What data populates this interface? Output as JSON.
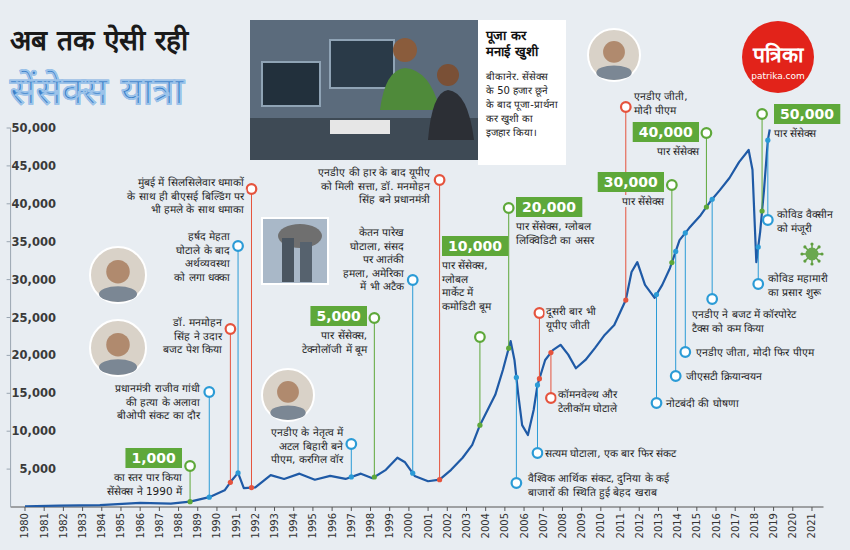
{
  "chart_data": {
    "type": "line",
    "title": "अब तक ऐसी रही",
    "subtitle": "सेंसेक्स यात्रा",
    "x": [
      1980.0,
      1981.8,
      1983.9,
      1986.0,
      1987.6,
      1988.6,
      1989.6,
      1990.4,
      1990.8,
      1991.1,
      1991.4,
      1992.0,
      1992.8,
      1993.5,
      1994.3,
      1995.1,
      1995.9,
      1996.7,
      1997.5,
      1998.1,
      1998.8,
      1999.4,
      1999.8,
      2000.3,
      2001.0,
      2001.6,
      2002.2,
      2002.8,
      2003.3,
      2003.7,
      2004.1,
      2004.5,
      2004.9,
      2005.3,
      2005.5,
      2005.7,
      2005.9,
      2006.2,
      2006.5,
      2006.7,
      2007.1,
      2007.5,
      2007.9,
      2008.3,
      2008.7,
      2009.2,
      2009.7,
      2010.2,
      2010.7,
      2011.3,
      2011.6,
      2011.9,
      2012.3,
      2012.8,
      2013.2,
      2013.6,
      2014.1,
      2014.6,
      2015.2,
      2015.7,
      2016.2,
      2016.7,
      2017.2,
      2017.7,
      2017.9,
      2018.1,
      2018.3,
      2018.5,
      2018.7,
      2018.8
    ],
    "values": [
      100,
      180,
      250,
      550,
      450,
      700,
      1300,
      2200,
      3600,
      4500,
      2500,
      2600,
      4200,
      3700,
      4400,
      3600,
      4100,
      3700,
      4400,
      3800,
      4900,
      6500,
      5900,
      4100,
      3400,
      3600,
      4900,
      6500,
      8200,
      10800,
      12800,
      14800,
      18100,
      21900,
      19400,
      14800,
      10800,
      9500,
      12800,
      16100,
      19400,
      20700,
      21400,
      20100,
      18300,
      19400,
      21000,
      22700,
      24000,
      27300,
      31000,
      32300,
      29300,
      27600,
      29300,
      31500,
      35200,
      36800,
      38500,
      40300,
      41800,
      43400,
      45500,
      47100,
      44500,
      32300,
      36300,
      41800,
      48400,
      49800
    ],
    "color": "#1f5aa6",
    "xlim": [
      1979.25,
      2021.6
    ],
    "ylim": [
      0,
      50000
    ],
    "xticks": [
      1980,
      1981,
      1982,
      1983,
      1984,
      1985,
      1986,
      1987,
      1988,
      1989,
      1990,
      1991,
      1992,
      1993,
      1994,
      1995,
      1996,
      1997,
      1998,
      1999,
      2000,
      2001,
      2002,
      2003,
      2004,
      2005,
      2006,
      2007,
      2008,
      2009,
      2010,
      2011,
      2012,
      2013,
      2014,
      2015,
      2016,
      2017,
      2018,
      2019,
      2020,
      2021
    ],
    "yticks": [
      {
        "value": 5000,
        "label": "5,000"
      },
      {
        "value": 10000,
        "label": "10,000"
      },
      {
        "value": 15000,
        "label": "15,000"
      },
      {
        "value": 20000,
        "label": "20,000"
      },
      {
        "value": 25000,
        "label": "25,000"
      },
      {
        "value": 30000,
        "label": "30,000"
      },
      {
        "value": 35000,
        "label": "35,000"
      },
      {
        "value": 40000,
        "label": "40,000"
      },
      {
        "value": 45000,
        "label": "45,000"
      },
      {
        "value": 50000,
        "label": "50,000"
      }
    ],
    "grid": false,
    "annotations": [
      {
        "x": 1988.6,
        "label": "1,000",
        "lines": [
          "का स्तर पार किया",
          "सेंसेक्स ने 1990 में"
        ],
        "color": "#5ea83a"
      },
      {
        "x": 1989.6,
        "lines": [
          "प्रधानमंत्री राजीव गांधी",
          "की हत्या के अलावा",
          "बीओपी संकट का दौर"
        ],
        "color": "#2b9bd6"
      },
      {
        "x": 1990.7,
        "lines": [
          "डॉ. मनमोहन",
          "सिंह ने उदार",
          "बजट पेश किया"
        ],
        "color": "#e5533d"
      },
      {
        "x": 1991.1,
        "lines": [
          "हर्षद मेहता",
          "घोटाले के बाद",
          "अर्थव्यवस्था",
          "को लगा धक्का"
        ],
        "color": "#2b9bd6"
      },
      {
        "x": 1991.8,
        "lines": [
          "मुंबई में सिलसिलेवार धमाकों",
          "के साथ ही बीएसई बिल्डिंग पर",
          "भी हमले के साथ धमाका"
        ],
        "color": "#e5533d"
      },
      {
        "x": 1997.0,
        "lines": [
          "एनडीए के नेतृत्व में",
          "अटल बिहारी बने",
          "पीएम, करगिल वॉर"
        ],
        "color": "#2b9bd6"
      },
      {
        "x": 1998.2,
        "label": "5,000",
        "lines": [
          "पार सेंसेक्स,",
          "टेक्नोलॉजी में बूम"
        ],
        "color": "#5ea83a"
      },
      {
        "x": 2000.2,
        "lines": [
          "केतन पारेख",
          "घोटाला, संसद",
          "पर आतंकी",
          "हमला, अमेरिका",
          "में भी अटैक"
        ],
        "color": "#2b9bd6"
      },
      {
        "x": 2001.6,
        "lines": [
          "एनडीए की हार के बाद यूपीए",
          "को मिली सत्ता, डॉ. मनमोहन",
          "सिंह बने प्रधानमंत्री"
        ],
        "color": "#e5533d"
      },
      {
        "x": 2003.7,
        "label": "10,000",
        "lines": [
          "पार सेंसेक्स,",
          "ग्लोबल",
          "मार्केट में",
          "कमोडिटी बूम"
        ],
        "color": "#5ea83a"
      },
      {
        "x": 2005.2,
        "label": "20,000",
        "lines": [
          "पार सेंसेक्स, ग्लोबल",
          "लिक्विडिटी का असर"
        ],
        "color": "#5ea83a"
      },
      {
        "x": 2006.8,
        "lines": [
          "दूसरी बार भी",
          "यूपीए जीती"
        ],
        "color": "#e5533d"
      },
      {
        "x": 2007.4,
        "lines": [
          "कॉमनवेल्थ और",
          "टेलीकॉम घोटाले"
        ],
        "color": "#e5533d"
      },
      {
        "x": 2006.7,
        "lines": [
          "सत्यम घोटाला, एक बार फिर संकट"
        ],
        "color": "#2b9bd6"
      },
      {
        "x": 2005.6,
        "lines": [
          "वैश्विक आर्थिक संकट, दुनिया के कई",
          "बाजारों की स्थिति हुई बेहद खराब"
        ],
        "color": "#2b9bd6"
      },
      {
        "x": 2011.3,
        "lines": [
          "एनडीए जीती,",
          "मोदी पीएम"
        ],
        "color": "#e5533d"
      },
      {
        "x": 2013.7,
        "label": "30,000",
        "lines": [
          "पार सेंसेक्स"
        ],
        "color": "#5ea83a"
      },
      {
        "x": 2015.5,
        "label": "40,000",
        "lines": [
          "पार सेंसेक्स"
        ],
        "color": "#5ea83a"
      },
      {
        "x": 2012.9,
        "lines": [
          "नोटबंदी की घोषणा"
        ],
        "color": "#2b9bd6"
      },
      {
        "x": 2013.9,
        "lines": [
          "जीएसटी क्रियान्वयन"
        ],
        "color": "#2b9bd6"
      },
      {
        "x": 2014.4,
        "lines": [
          "एनडीए जीता, मोदी फिर पीएम"
        ],
        "color": "#2b9bd6"
      },
      {
        "x": 2015.8,
        "lines": [
          "एनडीए ने बजट में कॉरपोरेट",
          "टैक्स को कम किया"
        ],
        "color": "#2b9bd6"
      },
      {
        "x": 2018.2,
        "lines": [
          "कोविड महामारी",
          "का प्रसार शुरू"
        ],
        "color": "#2b9bd6"
      },
      {
        "x": 2018.7,
        "lines": [
          "कोविड वैक्सीन",
          "को मंजूरी"
        ],
        "color": "#2b9bd6"
      },
      {
        "x": 2018.4,
        "label": "50,000",
        "lines": [
          "पार सेंसेक्स"
        ],
        "color": "#5ea83a"
      }
    ]
  },
  "photo_caption": {
    "title": [
      "पूजा कर",
      "मनाई खुशी"
    ],
    "lines": [
      "बीकानेर. सेंसेक्स",
      "के 50 हजार छूने",
      "के बाद पूजा-प्रार्थना",
      "कर खुशी का",
      "इजहार किया।"
    ]
  },
  "logo": {
    "name": "पत्रिका",
    "url": "patrika.com"
  }
}
